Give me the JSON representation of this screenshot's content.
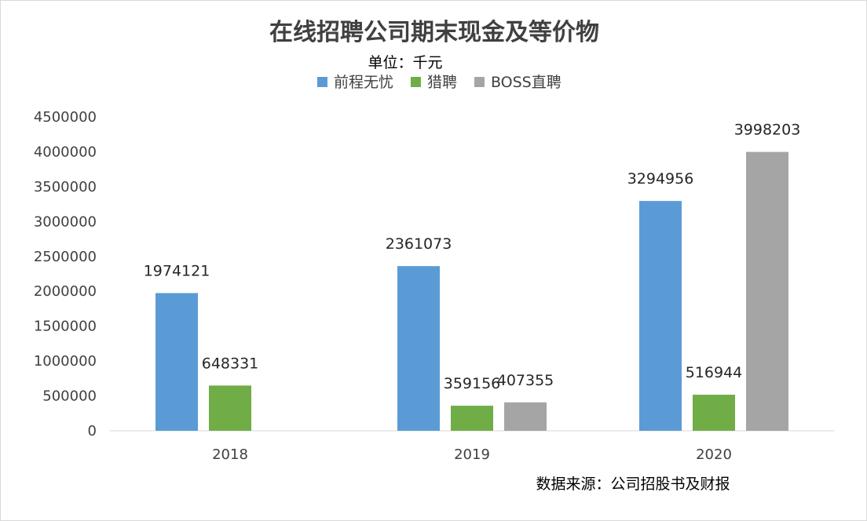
{
  "chart_data": {
    "type": "bar",
    "title": "在线招聘公司期末现金及等价物",
    "unit_note": "单位：千元",
    "source_note": "数据来源：公司招股书及财报",
    "categories": [
      "2018",
      "2019",
      "2020"
    ],
    "series": [
      {
        "name": "前程无忧",
        "color": "#5b9bd5",
        "values": [
          1974121,
          2361073,
          3294956
        ]
      },
      {
        "name": "猎聘",
        "color": "#70ad47",
        "values": [
          648331,
          359156,
          516944
        ]
      },
      {
        "name": "BOSS直聘",
        "color": "#a5a5a5",
        "values": [
          null,
          407355,
          3998203
        ]
      }
    ],
    "ylim": [
      0,
      4500000
    ],
    "yticks": [
      "0",
      "500000",
      "1000000",
      "1500000",
      "2000000",
      "2500000",
      "3000000",
      "3500000",
      "4000000",
      "4500000"
    ],
    "legend_position": "top",
    "grid": false
  }
}
